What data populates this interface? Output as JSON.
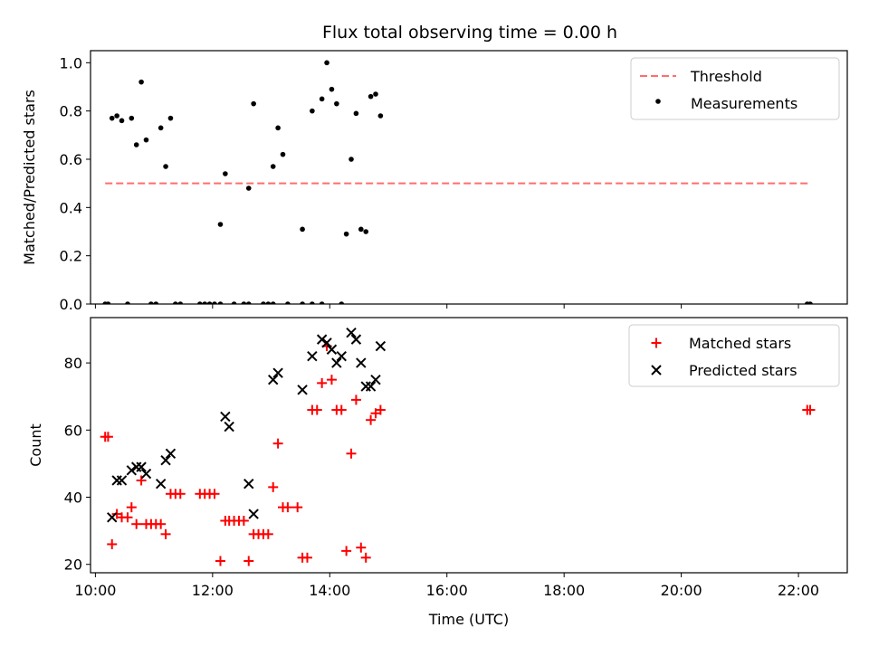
{
  "colors": {
    "threshold": "#ff6e6e",
    "measurements": "#000000",
    "matched": "#ff0000",
    "predicted": "#000000"
  },
  "chart_data": [
    {
      "type": "scatter",
      "title": "Flux total observing time = 0.00 h",
      "xlabel": "",
      "ylabel": "Matched/Predicted stars",
      "xlim": [
        "09:55",
        "22:50"
      ],
      "ylim": [
        0,
        1.05
      ],
      "x_ticks": [
        "10:00",
        "12:00",
        "14:00",
        "16:00",
        "18:00",
        "20:00",
        "22:00"
      ],
      "y_ticks": [
        "0.0",
        "0.2",
        "0.4",
        "0.6",
        "0.8",
        "1.0"
      ],
      "legend_position": "top-right",
      "series": [
        {
          "name": "Threshold",
          "style": "dashed-line",
          "x": [
            "10:10",
            "22:10"
          ],
          "y": [
            0.5,
            0.5
          ]
        },
        {
          "name": "Measurements",
          "style": "dots",
          "points": [
            [
              "10:10",
              0.0
            ],
            [
              "10:13",
              0.0
            ],
            [
              "10:17",
              0.77
            ],
            [
              "10:22",
              0.78
            ],
            [
              "10:27",
              0.76
            ],
            [
              "10:33",
              0.0
            ],
            [
              "10:37",
              0.77
            ],
            [
              "10:42",
              0.66
            ],
            [
              "10:47",
              0.92
            ],
            [
              "10:52",
              0.68
            ],
            [
              "10:57",
              0.0
            ],
            [
              "11:02",
              0.0
            ],
            [
              "11:07",
              0.73
            ],
            [
              "11:12",
              0.57
            ],
            [
              "11:17",
              0.77
            ],
            [
              "11:22",
              0.0
            ],
            [
              "11:27",
              0.0
            ],
            [
              "11:47",
              0.0
            ],
            [
              "11:52",
              0.0
            ],
            [
              "11:57",
              0.0
            ],
            [
              "12:02",
              0.0
            ],
            [
              "12:08",
              0.0
            ],
            [
              "12:08",
              0.33
            ],
            [
              "12:13",
              0.54
            ],
            [
              "12:22",
              0.0
            ],
            [
              "12:32",
              0.0
            ],
            [
              "12:37",
              0.0
            ],
            [
              "12:37",
              0.48
            ],
            [
              "12:42",
              0.83
            ],
            [
              "12:52",
              0.0
            ],
            [
              "12:57",
              0.0
            ],
            [
              "13:02",
              0.0
            ],
            [
              "13:02",
              0.57
            ],
            [
              "13:07",
              0.73
            ],
            [
              "13:12",
              0.62
            ],
            [
              "13:17",
              0.0
            ],
            [
              "13:32",
              0.0
            ],
            [
              "13:32",
              0.31
            ],
            [
              "13:42",
              0.0
            ],
            [
              "13:42",
              0.8
            ],
            [
              "13:52",
              0.0
            ],
            [
              "13:52",
              0.85
            ],
            [
              "13:57",
              1.0
            ],
            [
              "14:02",
              0.89
            ],
            [
              "14:07",
              0.83
            ],
            [
              "14:12",
              0.0
            ],
            [
              "14:17",
              0.29
            ],
            [
              "14:22",
              0.6
            ],
            [
              "14:27",
              0.79
            ],
            [
              "14:32",
              0.31
            ],
            [
              "14:37",
              0.3
            ],
            [
              "14:42",
              0.86
            ],
            [
              "14:47",
              0.87
            ],
            [
              "14:52",
              0.78
            ],
            [
              "22:09",
              0.0
            ],
            [
              "22:12",
              0.0
            ]
          ]
        }
      ]
    },
    {
      "type": "scatter",
      "xlabel": "Time (UTC)",
      "ylabel": "Count",
      "xlim": [
        "09:55",
        "22:50"
      ],
      "ylim": [
        17.5,
        93.5
      ],
      "x_ticks": [
        "10:00",
        "12:00",
        "14:00",
        "16:00",
        "18:00",
        "20:00",
        "22:00"
      ],
      "y_ticks": [
        "20",
        "40",
        "60",
        "80"
      ],
      "legend_position": "top-right",
      "series": [
        {
          "name": "Matched stars",
          "marker": "plus",
          "points": [
            [
              "10:10",
              58
            ],
            [
              "10:13",
              58
            ],
            [
              "10:17",
              26
            ],
            [
              "10:22",
              35
            ],
            [
              "10:27",
              34
            ],
            [
              "10:33",
              34
            ],
            [
              "10:37",
              37
            ],
            [
              "10:42",
              32
            ],
            [
              "10:47",
              45
            ],
            [
              "10:52",
              32
            ],
            [
              "10:57",
              32
            ],
            [
              "11:02",
              32
            ],
            [
              "11:07",
              32
            ],
            [
              "11:12",
              29
            ],
            [
              "11:17",
              41
            ],
            [
              "11:22",
              41
            ],
            [
              "11:27",
              41
            ],
            [
              "11:47",
              41
            ],
            [
              "11:52",
              41
            ],
            [
              "11:57",
              41
            ],
            [
              "12:02",
              41
            ],
            [
              "12:08",
              21
            ],
            [
              "12:13",
              33
            ],
            [
              "12:17",
              33
            ],
            [
              "12:22",
              33
            ],
            [
              "12:27",
              33
            ],
            [
              "12:32",
              33
            ],
            [
              "12:37",
              21
            ],
            [
              "12:42",
              29
            ],
            [
              "12:47",
              29
            ],
            [
              "12:52",
              29
            ],
            [
              "12:57",
              29
            ],
            [
              "13:02",
              43
            ],
            [
              "13:07",
              56
            ],
            [
              "13:12",
              37
            ],
            [
              "13:17",
              37
            ],
            [
              "13:27",
              37
            ],
            [
              "13:32",
              22
            ],
            [
              "13:37",
              22
            ],
            [
              "13:42",
              66
            ],
            [
              "13:47",
              66
            ],
            [
              "13:52",
              74
            ],
            [
              "13:57",
              85
            ],
            [
              "14:02",
              75
            ],
            [
              "14:07",
              66
            ],
            [
              "14:12",
              66
            ],
            [
              "14:17",
              24
            ],
            [
              "14:22",
              53
            ],
            [
              "14:27",
              69
            ],
            [
              "14:32",
              25
            ],
            [
              "14:37",
              22
            ],
            [
              "14:42",
              63
            ],
            [
              "14:47",
              65
            ],
            [
              "14:52",
              66
            ],
            [
              "22:09",
              66
            ],
            [
              "22:12",
              66
            ]
          ]
        },
        {
          "name": "Predicted stars",
          "marker": "x",
          "points": [
            [
              "10:17",
              34
            ],
            [
              "10:22",
              45
            ],
            [
              "10:27",
              45
            ],
            [
              "10:37",
              48
            ],
            [
              "10:42",
              49
            ],
            [
              "10:47",
              49
            ],
            [
              "10:52",
              47
            ],
            [
              "11:07",
              44
            ],
            [
              "11:12",
              51
            ],
            [
              "11:17",
              53
            ],
            [
              "12:13",
              64
            ],
            [
              "12:17",
              61
            ],
            [
              "12:37",
              44
            ],
            [
              "12:42",
              35
            ],
            [
              "13:02",
              75
            ],
            [
              "13:07",
              77
            ],
            [
              "13:32",
              72
            ],
            [
              "13:42",
              82
            ],
            [
              "13:52",
              87
            ],
            [
              "13:57",
              86
            ],
            [
              "14:02",
              84
            ],
            [
              "14:07",
              80
            ],
            [
              "14:12",
              82
            ],
            [
              "14:22",
              89
            ],
            [
              "14:27",
              87
            ],
            [
              "14:32",
              80
            ],
            [
              "14:37",
              73
            ],
            [
              "14:42",
              73
            ],
            [
              "14:47",
              75
            ],
            [
              "14:52",
              85
            ]
          ]
        }
      ]
    }
  ]
}
